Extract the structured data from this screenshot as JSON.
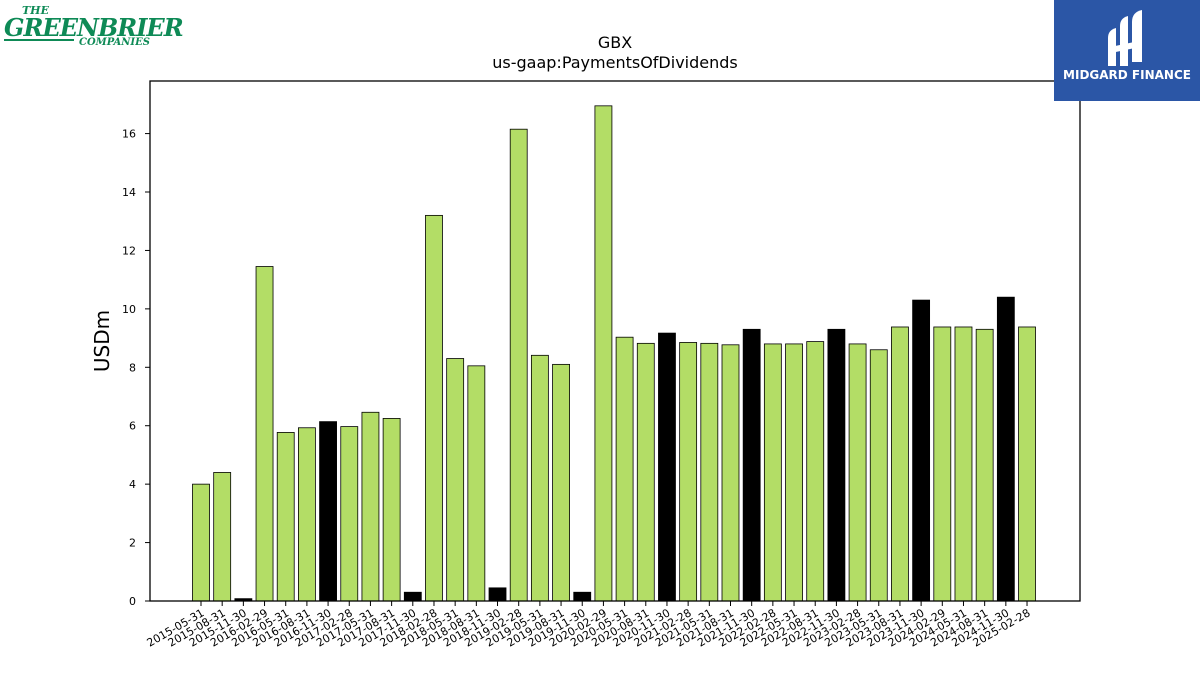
{
  "logos": {
    "left": {
      "line1": "THE",
      "line2": "GREENBRIER",
      "line3": "COMPANIES"
    },
    "right": {
      "name": "MIDGARD FINANCE"
    }
  },
  "colors": {
    "regular": "#b3dd66",
    "highlight": "#000000",
    "edge": "#000000"
  },
  "chart_data": {
    "type": "bar",
    "title": "GBX",
    "subtitle": "us-gaap:PaymentsOfDividends",
    "xlabel": "",
    "ylabel": "USDm",
    "ylim": [
      0,
      17.8
    ],
    "yticks": [
      0,
      2,
      4,
      6,
      8,
      10,
      12,
      14,
      16
    ],
    "grid": false,
    "categories": [
      "2015-05-31",
      "2015-08-31",
      "2015-11-30",
      "2016-02-29",
      "2016-05-31",
      "2016-08-31",
      "2016-11-30",
      "2017-02-28",
      "2017-05-31",
      "2017-08-31",
      "2017-11-30",
      "2018-02-28",
      "2018-05-31",
      "2018-08-31",
      "2018-11-30",
      "2019-02-28",
      "2019-05-31",
      "2019-08-31",
      "2019-11-30",
      "2020-02-29",
      "2020-05-31",
      "2020-08-31",
      "2020-11-30",
      "2021-02-28",
      "2021-05-31",
      "2021-08-31",
      "2021-11-30",
      "2022-02-28",
      "2022-05-31",
      "2022-08-31",
      "2022-11-30",
      "2023-02-28",
      "2023-05-31",
      "2023-08-31",
      "2023-11-30",
      "2024-02-29",
      "2024-05-31",
      "2024-08-31",
      "2024-11-30",
      "2025-02-28"
    ],
    "values": [
      4.0,
      4.4,
      0.08,
      11.45,
      5.77,
      5.93,
      6.14,
      5.97,
      6.46,
      6.25,
      0.3,
      13.2,
      8.3,
      8.05,
      0.45,
      16.15,
      8.41,
      8.1,
      0.3,
      16.95,
      9.03,
      8.82,
      9.17,
      8.85,
      8.82,
      8.77,
      9.3,
      8.8,
      8.8,
      8.88,
      9.3,
      8.8,
      8.6,
      9.38,
      10.3,
      9.38,
      9.38,
      9.3,
      10.4,
      9.38
    ],
    "highlight": [
      false,
      false,
      true,
      false,
      false,
      false,
      true,
      false,
      false,
      false,
      true,
      false,
      false,
      false,
      true,
      false,
      false,
      false,
      true,
      false,
      false,
      false,
      true,
      false,
      false,
      false,
      true,
      false,
      false,
      false,
      true,
      false,
      false,
      false,
      true,
      false,
      false,
      false,
      true,
      false
    ]
  }
}
